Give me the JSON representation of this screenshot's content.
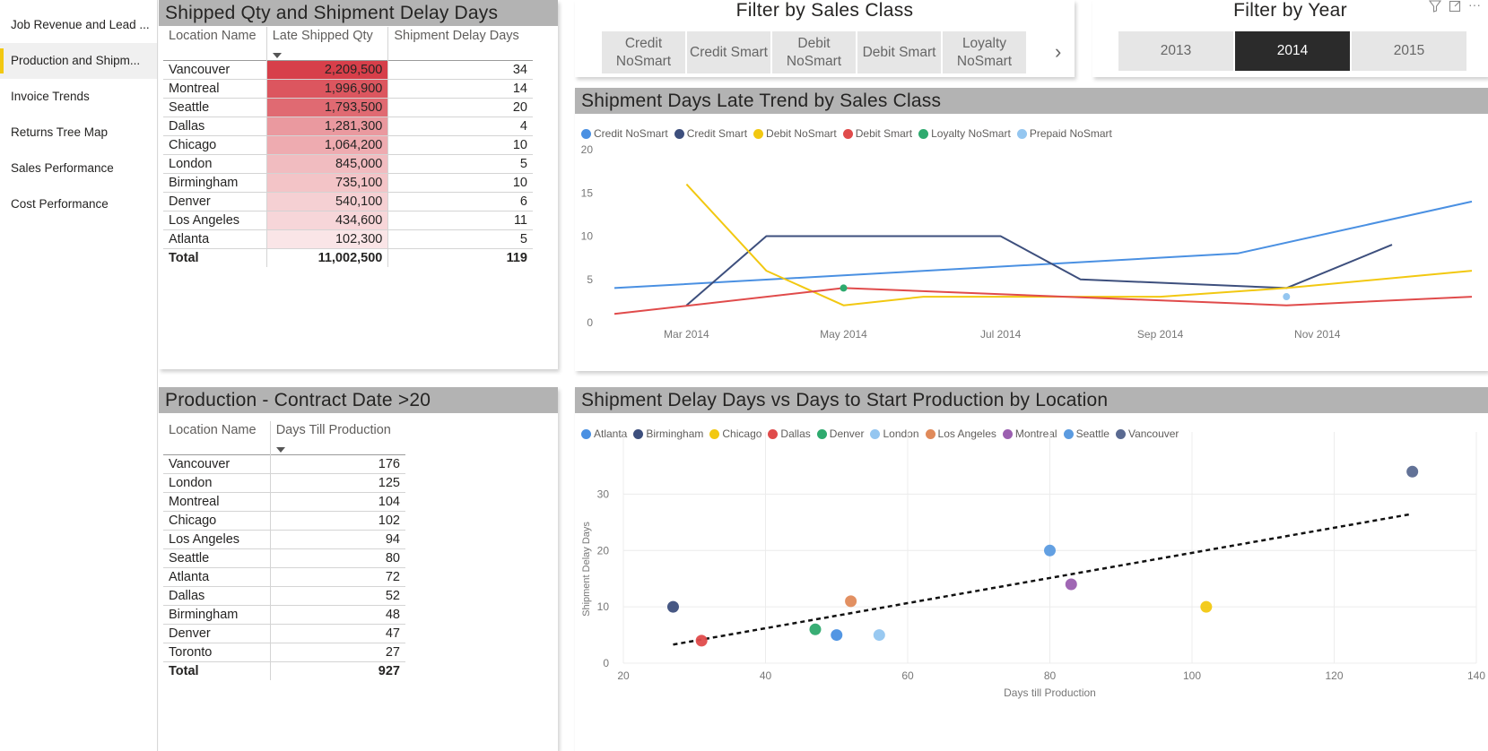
{
  "nav": {
    "items": [
      {
        "label": "Job Revenue and Lead ...",
        "active": false
      },
      {
        "label": "Production and Shipm...",
        "active": true
      },
      {
        "label": "Invoice Trends",
        "active": false
      },
      {
        "label": "Returns Tree Map",
        "active": false
      },
      {
        "label": "Sales Performance",
        "active": false
      },
      {
        "label": "Cost Performance",
        "active": false
      }
    ]
  },
  "shipped_table": {
    "title": "Shipped Qty and Shipment Delay Days",
    "columns": [
      "Location Name",
      "Late Shipped Qty",
      "Shipment Delay Days"
    ],
    "heat_color": "#d73f4a",
    "rows": [
      {
        "name": "Vancouver",
        "qty": "2,209,500",
        "qty_value": 2209500,
        "days": "34"
      },
      {
        "name": "Montreal",
        "qty": "1,996,900",
        "qty_value": 1996900,
        "days": "14"
      },
      {
        "name": "Seattle",
        "qty": "1,793,500",
        "qty_value": 1793500,
        "days": "20"
      },
      {
        "name": "Dallas",
        "qty": "1,281,300",
        "qty_value": 1281300,
        "days": "4"
      },
      {
        "name": "Chicago",
        "qty": "1,064,200",
        "qty_value": 1064200,
        "days": "10"
      },
      {
        "name": "London",
        "qty": "845,000",
        "qty_value": 845000,
        "days": "5"
      },
      {
        "name": "Birmingham",
        "qty": "735,100",
        "qty_value": 735100,
        "days": "10"
      },
      {
        "name": "Denver",
        "qty": "540,100",
        "qty_value": 540100,
        "days": "6"
      },
      {
        "name": "Los Angeles",
        "qty": "434,600",
        "qty_value": 434600,
        "days": "11"
      },
      {
        "name": "Atlanta",
        "qty": "102,300",
        "qty_value": 102300,
        "days": "5"
      }
    ],
    "total": {
      "name": "Total",
      "qty": "11,002,500",
      "days": "119"
    }
  },
  "production_table": {
    "title": "Production - Contract Date >20",
    "columns": [
      "Location Name",
      "Days Till Production"
    ],
    "rows": [
      {
        "name": "Vancouver",
        "days": "176"
      },
      {
        "name": "London",
        "days": "125"
      },
      {
        "name": "Montreal",
        "days": "104"
      },
      {
        "name": "Chicago",
        "days": "102"
      },
      {
        "name": "Los Angeles",
        "days": "94"
      },
      {
        "name": "Seattle",
        "days": "80"
      },
      {
        "name": "Atlanta",
        "days": "72"
      },
      {
        "name": "Dallas",
        "days": "52"
      },
      {
        "name": "Birmingham",
        "days": "48"
      },
      {
        "name": "Denver",
        "days": "47"
      },
      {
        "name": "Toronto",
        "days": "27"
      }
    ],
    "total": {
      "name": "Total",
      "days": "927"
    }
  },
  "sales_class_slicer": {
    "title": "Filter by Sales Class",
    "options": [
      "Credit NoSmart",
      "Credit Smart",
      "Debit NoSmart",
      "Debit Smart",
      "Loyalty NoSmart"
    ]
  },
  "year_slicer": {
    "title": "Filter by Year",
    "options": [
      "2013",
      "2014",
      "2015"
    ],
    "selected": "2014"
  },
  "chart_data": [
    {
      "type": "line",
      "title": "Shipment Days Late Trend by Sales Class",
      "x_ticks": [
        "Mar 2014",
        "May 2014",
        "Jul 2014",
        "Sep 2014",
        "Nov 2014"
      ],
      "ylim": [
        0,
        20
      ],
      "y_ticks": [
        "0",
        "5",
        "10",
        "15",
        "20"
      ],
      "legend": "top-left",
      "grid": false,
      "series": [
        {
          "name": "Credit NoSmart",
          "color": "#4a90e2",
          "points": [
            [
              "2014-02-01",
              4
            ],
            [
              "2014-10-01",
              8
            ],
            [
              "2014-12-31",
              14
            ]
          ]
        },
        {
          "name": "Credit Smart",
          "color": "#3d4f7d",
          "points": [
            [
              "2014-03-01",
              2
            ],
            [
              "2014-04-01",
              10
            ],
            [
              "2014-07-01",
              10
            ],
            [
              "2014-08-01",
              5
            ],
            [
              "2014-10-20",
              4
            ],
            [
              "2014-11-30",
              9
            ]
          ]
        },
        {
          "name": "Debit NoSmart",
          "color": "#f2c811",
          "points": [
            [
              "2014-03-01",
              16
            ],
            [
              "2014-04-01",
              6
            ],
            [
              "2014-05-01",
              2
            ],
            [
              "2014-06-01",
              3
            ],
            [
              "2014-09-01",
              3
            ],
            [
              "2014-10-20",
              4
            ],
            [
              "2014-12-31",
              6
            ]
          ]
        },
        {
          "name": "Debit Smart",
          "color": "#e04b4b",
          "points": [
            [
              "2014-02-01",
              1
            ],
            [
              "2014-05-01",
              4
            ],
            [
              "2014-10-20",
              2
            ],
            [
              "2014-12-31",
              3
            ]
          ]
        },
        {
          "name": "Loyalty NoSmart",
          "color": "#2eaa6e",
          "points": [
            [
              "2014-05-01",
              4
            ]
          ],
          "marker_only": true
        },
        {
          "name": "Prepaid NoSmart",
          "color": "#94c6f0",
          "points": [
            [
              "2014-10-20",
              3
            ]
          ],
          "marker_only": true
        }
      ]
    },
    {
      "type": "scatter",
      "title": "Shipment Delay Days vs Days to Start Production by Location",
      "xlabel": "Days till Production",
      "ylabel": "Shipment Delay Days",
      "xlim": [
        20,
        140
      ],
      "ylim": [
        0,
        35
      ],
      "x_ticks": [
        "20",
        "40",
        "60",
        "80",
        "100",
        "120",
        "140"
      ],
      "y_ticks": [
        "0",
        "10",
        "20",
        "30"
      ],
      "grid": true,
      "legend": "top-left",
      "trend_line": {
        "from": [
          27,
          3.3
        ],
        "to": [
          131,
          26.5
        ]
      },
      "series": [
        {
          "name": "Atlanta",
          "color": "#4a90e2",
          "x": 50,
          "y": 5
        },
        {
          "name": "Birmingham",
          "color": "#3d4f7d",
          "x": 27,
          "y": 10
        },
        {
          "name": "Chicago",
          "color": "#f2c811",
          "x": 102,
          "y": 10
        },
        {
          "name": "Dallas",
          "color": "#e04b4b",
          "x": 31,
          "y": 4
        },
        {
          "name": "Denver",
          "color": "#2eaa6e",
          "x": 47,
          "y": 6
        },
        {
          "name": "London",
          "color": "#94c6f0",
          "x": 56,
          "y": 5
        },
        {
          "name": "Los Angeles",
          "color": "#e08a5a",
          "x": 52,
          "y": 11
        },
        {
          "name": "Montreal",
          "color": "#9b5fb0",
          "x": 83,
          "y": 14
        },
        {
          "name": "Seattle",
          "color": "#5b9be0",
          "x": 80,
          "y": 20
        },
        {
          "name": "Vancouver",
          "color": "#5a6a91",
          "x": 131,
          "y": 34
        }
      ]
    }
  ]
}
